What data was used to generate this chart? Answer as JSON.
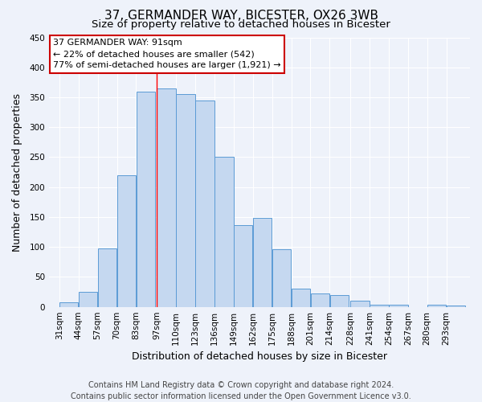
{
  "title": "37, GERMANDER WAY, BICESTER, OX26 3WB",
  "subtitle": "Size of property relative to detached houses in Bicester",
  "xlabel": "Distribution of detached houses by size in Bicester",
  "ylabel": "Number of detached properties",
  "bar_labels": [
    "31sqm",
    "44sqm",
    "57sqm",
    "70sqm",
    "83sqm",
    "97sqm",
    "110sqm",
    "123sqm",
    "136sqm",
    "149sqm",
    "162sqm",
    "175sqm",
    "188sqm",
    "201sqm",
    "214sqm",
    "228sqm",
    "241sqm",
    "254sqm",
    "267sqm",
    "280sqm",
    "293sqm"
  ],
  "bar_values": [
    8,
    25,
    98,
    220,
    360,
    365,
    355,
    345,
    250,
    137,
    148,
    96,
    30,
    22,
    20,
    10,
    4,
    4,
    0,
    4,
    2
  ],
  "bar_color": "#c5d8f0",
  "bar_edge_color": "#5b9bd5",
  "ylim": [
    0,
    450
  ],
  "yticks": [
    0,
    50,
    100,
    150,
    200,
    250,
    300,
    350,
    400,
    450
  ],
  "property_line_x": 97,
  "property_line_label": "37 GERMANDER WAY: 91sqm",
  "annotation_line1": "← 22% of detached houses are smaller (542)",
  "annotation_line2": "77% of semi-detached houses are larger (1,921) →",
  "annotation_box_color": "#ffffff",
  "annotation_box_edge_color": "#cc0000",
  "footer_line1": "Contains HM Land Registry data © Crown copyright and database right 2024.",
  "footer_line2": "Contains public sector information licensed under the Open Government Licence v3.0.",
  "bin_edges": [
    31,
    44,
    57,
    70,
    83,
    97,
    110,
    123,
    136,
    149,
    162,
    175,
    188,
    201,
    214,
    228,
    241,
    254,
    267,
    280,
    293
  ],
  "background_color": "#eef2fa",
  "grid_color": "#ffffff",
  "title_fontsize": 11,
  "subtitle_fontsize": 9.5,
  "axis_label_fontsize": 9,
  "tick_fontsize": 7.5,
  "annotation_fontsize": 8,
  "footer_fontsize": 7
}
